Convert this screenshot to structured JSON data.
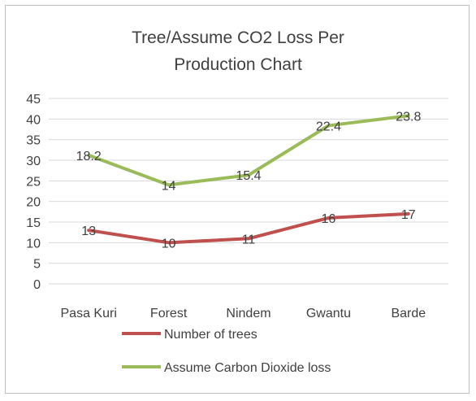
{
  "chart_data": {
    "type": "line",
    "title": "Tree/Assume CO2 Loss Per\nProduction Chart",
    "categories": [
      "Pasa Kuri",
      "Forest",
      "Nindem",
      "Gwantu",
      "Barde"
    ],
    "ylim": [
      0,
      45
    ],
    "yticks": [
      0,
      5,
      10,
      15,
      20,
      25,
      30,
      35,
      40,
      45
    ],
    "grid": true,
    "legend_position": "bottom",
    "series": [
      {
        "name": "Number of trees",
        "color": "#c0504d",
        "values": [
          13,
          10,
          11,
          16,
          17
        ],
        "labels": [
          "13",
          "10",
          "11",
          "16",
          "17"
        ]
      },
      {
        "name": "Assume Carbon Dioxide loss",
        "color": "#9bbb59",
        "values": [
          31.2,
          24,
          26.4,
          38.4,
          40.8
        ],
        "labels": [
          "18.2",
          "14",
          "15.4",
          "22.4",
          "23.8"
        ]
      }
    ]
  }
}
